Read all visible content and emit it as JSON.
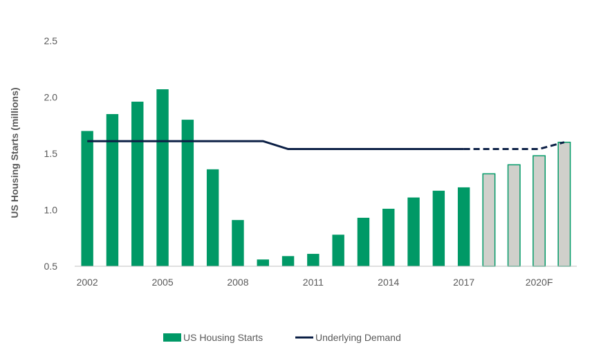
{
  "chart_data": {
    "type": "bar",
    "title": "",
    "xlabel": "",
    "ylabel": "US Housing Starts (millions)",
    "ylim": [
      0.5,
      2.5
    ],
    "yticks": [
      "0.5",
      "1.0",
      "1.5",
      "2.0",
      "2.5"
    ],
    "x": [
      "2002",
      "2003",
      "2004",
      "2005",
      "2006",
      "2007",
      "2008",
      "2009",
      "2010",
      "2011",
      "2012",
      "2013",
      "2014",
      "2015",
      "2016",
      "2017",
      "2018F",
      "2019F",
      "2020F",
      "2021F"
    ],
    "xtick_labels": [
      "2002",
      "2005",
      "2008",
      "2011",
      "2014",
      "2017",
      "2020F"
    ],
    "legend_position": "bottom",
    "grid": false,
    "series": [
      {
        "name": "US Housing Starts",
        "type": "bar",
        "values": [
          1.7,
          1.85,
          1.96,
          2.07,
          1.8,
          1.36,
          0.91,
          0.56,
          0.59,
          0.61,
          0.78,
          0.93,
          1.01,
          1.11,
          1.17,
          1.2,
          1.32,
          1.4,
          1.48,
          1.6
        ],
        "forecast_from": "2018F",
        "color": "#009966",
        "forecast_fill": "#d0d0cb",
        "forecast_edge": "#009966"
      },
      {
        "name": "Underlying Demand",
        "type": "line",
        "values": [
          1.61,
          1.61,
          1.61,
          1.61,
          1.61,
          1.61,
          1.61,
          1.61,
          1.54,
          1.54,
          1.54,
          1.54,
          1.54,
          1.54,
          1.54,
          1.54,
          1.54,
          1.54,
          1.54,
          1.6
        ],
        "forecast_from": "2017",
        "color": "#0b1f45",
        "forecast_style": "dashed"
      }
    ]
  }
}
